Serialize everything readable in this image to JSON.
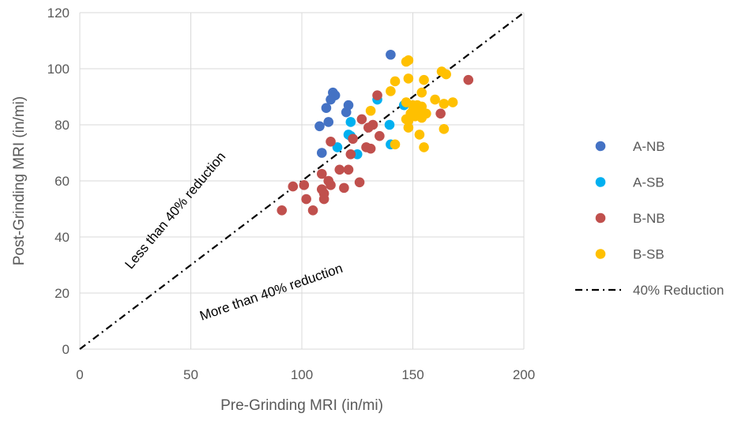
{
  "chart_data": {
    "type": "scatter",
    "title": "",
    "xlabel": "Pre-Grinding MRI  (in/mi)",
    "ylabel": "Post-Grinding MRI  (in/mi)",
    "xlim": [
      0,
      200
    ],
    "ylim": [
      0,
      120
    ],
    "x_ticks": [
      "0",
      "50",
      "100",
      "150",
      "200"
    ],
    "y_ticks": [
      "0",
      "20",
      "40",
      "60",
      "80",
      "100",
      "120"
    ],
    "grid": true,
    "legend_position": "right",
    "series": [
      {
        "name": "A-NB",
        "color": "#4472C4",
        "points": [
          [
            140,
            105
          ],
          [
            114,
            91.5
          ],
          [
            115,
            90.5
          ],
          [
            113,
            89
          ],
          [
            111,
            86
          ],
          [
            121,
            87
          ],
          [
            120,
            84.5
          ],
          [
            112,
            81
          ],
          [
            108,
            79.5
          ],
          [
            109,
            70
          ]
        ]
      },
      {
        "name": "A-SB",
        "color": "#00B0F0",
        "points": [
          [
            134,
            89
          ],
          [
            146,
            87
          ],
          [
            122,
            81
          ],
          [
            139.5,
            80
          ],
          [
            121,
            76.5
          ],
          [
            122,
            76
          ],
          [
            116,
            72
          ],
          [
            140,
            73
          ],
          [
            125,
            69.5
          ]
        ]
      },
      {
        "name": "B-NB",
        "color": "#C0504D",
        "points": [
          [
            175,
            96
          ],
          [
            134,
            90.5
          ],
          [
            148,
            82
          ],
          [
            162.5,
            84
          ],
          [
            127,
            82
          ],
          [
            130,
            79
          ],
          [
            132,
            80
          ],
          [
            135,
            76
          ],
          [
            123,
            75
          ],
          [
            113,
            74
          ],
          [
            129,
            72
          ],
          [
            131,
            71.5
          ],
          [
            122,
            69.5
          ],
          [
            117,
            64
          ],
          [
            121,
            64
          ],
          [
            112,
            60
          ],
          [
            113,
            58.5
          ],
          [
            126,
            59.5
          ],
          [
            109,
            62.5
          ],
          [
            96,
            58
          ],
          [
            101,
            58.5
          ],
          [
            109,
            57
          ],
          [
            119,
            57.5
          ],
          [
            110,
            55.5
          ],
          [
            102,
            53.5
          ],
          [
            110,
            53.5
          ],
          [
            91,
            49.5
          ],
          [
            105,
            49.5
          ]
        ]
      },
      {
        "name": "B-SB",
        "color": "#FFC000",
        "points": [
          [
            147,
            102.5
          ],
          [
            148,
            103
          ],
          [
            163,
            99
          ],
          [
            165,
            98
          ],
          [
            142,
            95.5
          ],
          [
            148,
            96.5
          ],
          [
            155,
            96
          ],
          [
            140,
            92
          ],
          [
            154,
            91.5
          ],
          [
            147,
            88
          ],
          [
            150,
            87
          ],
          [
            152,
            87
          ],
          [
            154,
            86.5
          ],
          [
            160,
            89
          ],
          [
            164,
            87.5
          ],
          [
            168,
            88
          ],
          [
            131,
            85
          ],
          [
            150,
            85
          ],
          [
            153,
            85.5
          ],
          [
            149,
            84
          ],
          [
            151,
            83
          ],
          [
            156,
            84
          ],
          [
            147,
            82
          ],
          [
            148,
            81.5
          ],
          [
            154,
            82.5
          ],
          [
            148,
            79
          ],
          [
            164,
            78.5
          ],
          [
            153,
            76.5
          ],
          [
            142,
            73
          ],
          [
            155,
            72
          ]
        ]
      }
    ],
    "reference_line": {
      "name": "40% Reduction",
      "style": "dash-dot",
      "color": "#000000",
      "slope": 0.6,
      "x_range": [
        0,
        200
      ]
    },
    "annotations": [
      "Less than 40% reduction",
      "More than 40% reduction"
    ]
  }
}
